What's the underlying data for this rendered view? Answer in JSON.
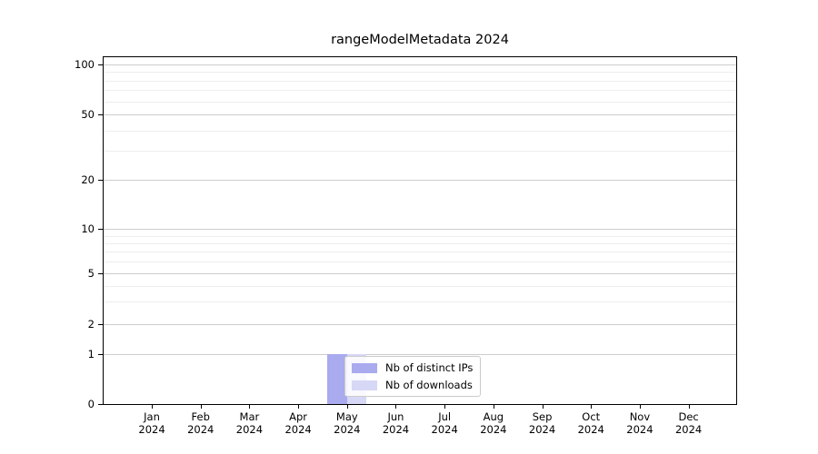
{
  "chart_data": {
    "type": "bar",
    "title": "rangeModelMetadata 2024",
    "categories": [
      "Jan 2024",
      "Feb 2024",
      "Mar 2024",
      "Apr 2024",
      "May 2024",
      "Jun 2024",
      "Jul 2024",
      "Aug 2024",
      "Sep 2024",
      "Oct 2024",
      "Nov 2024",
      "Dec 2024"
    ],
    "series": [
      {
        "name": "Nb of distinct IPs",
        "color": "#aaaaef",
        "values": [
          0,
          0,
          0,
          0,
          1,
          0,
          0,
          0,
          0,
          0,
          0,
          0
        ]
      },
      {
        "name": "Nb of downloads",
        "color": "#d7d7f6",
        "values": [
          0,
          0,
          0,
          0,
          1,
          0,
          0,
          0,
          0,
          0,
          0,
          0
        ]
      }
    ],
    "y_axis": {
      "scale": "symlog",
      "ticks": [
        {
          "value": 0,
          "frac": 0.0
        },
        {
          "value": 1,
          "frac": 0.144
        },
        {
          "value": 2,
          "frac": 0.23
        },
        {
          "value": 5,
          "frac": 0.377
        },
        {
          "value": 10,
          "frac": 0.505
        },
        {
          "value": 20,
          "frac": 0.647
        },
        {
          "value": 50,
          "frac": 0.835
        },
        {
          "value": 100,
          "frac": 0.979
        }
      ],
      "minor_ticks": [
        3,
        4,
        6,
        7,
        8,
        9,
        30,
        40,
        60,
        70,
        80,
        90
      ]
    },
    "x_axis": {
      "tick_labels_two_line": true,
      "first_center_frac": 0.0762,
      "spacing_frac": 0.07714
    },
    "legend": {
      "position": "inside-bottom-center-left",
      "entries": [
        "Nb of distinct IPs",
        "Nb of downloads"
      ]
    },
    "grid": {
      "major_color": "#cdcdcd",
      "minor_color": "#ededed"
    },
    "bar_group_width_frac": 0.8
  }
}
